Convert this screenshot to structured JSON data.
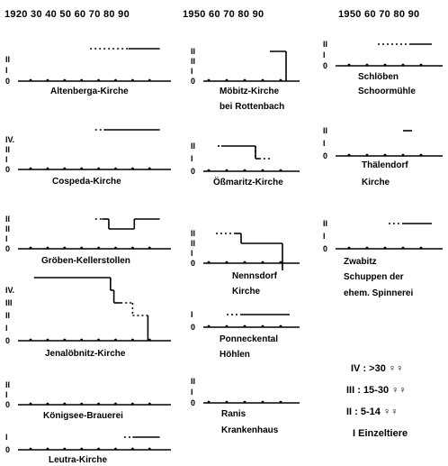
{
  "headers": {
    "col1": "1920 30 40 50 60 70 80 90",
    "col2": "1950 60 70 80 90",
    "col3": "1950 60 70 80 90"
  },
  "panels": [
    {
      "id": "altenberga",
      "label": "Altenberga-Kirche",
      "label2": "",
      "levels": [
        "II",
        "I",
        "0"
      ],
      "top": "II",
      "segments": [
        {
          "from": 1955,
          "to": 1996,
          "level": 3,
          "style": "dotted-then-solid"
        }
      ]
    },
    {
      "id": "cospeda",
      "label": "Cospeda-Kirche",
      "label2": "",
      "levels": [
        "IV.",
        "II",
        "I",
        "0"
      ],
      "top": "IV.",
      "segments": [
        {
          "from": 1958,
          "to": 1963,
          "level": 4,
          "style": "dotted"
        },
        {
          "from": 1963,
          "to": 1996,
          "level": 4,
          "style": "solid"
        }
      ]
    },
    {
      "id": "groeben",
      "label": "Gröben-Kellerstollen",
      "label2": "",
      "levels": [
        "II",
        "II",
        "I",
        "0"
      ],
      "top": "II",
      "segments": [
        {
          "from": 1958,
          "to": 1962,
          "level": 3,
          "style": "dotted"
        },
        {
          "from": 1962,
          "to": 1966,
          "level": 3,
          "style": "solid"
        },
        {
          "from": 1966,
          "to": 1981,
          "level": 2,
          "style": "solid"
        },
        {
          "from": 1981,
          "to": 1996,
          "level": 3,
          "style": "solid"
        }
      ]
    },
    {
      "id": "jenaloebnitz",
      "label": "Jenalöbnitz-Kirche",
      "label2": "",
      "levels": [
        "IV.",
        "III",
        "II",
        "I",
        "0"
      ],
      "top": "IV.",
      "segments": [
        {
          "from": 1922,
          "to": 1967,
          "level": 5,
          "style": "solid"
        },
        {
          "from": 1967,
          "to": 1969,
          "level": 4,
          "style": "solid"
        },
        {
          "from": 1969,
          "to": 1973,
          "level": 3,
          "style": "solid"
        },
        {
          "from": 1973,
          "to": 1980,
          "level": 3,
          "style": "dotted"
        },
        {
          "from": 1980,
          "to": 1989,
          "level": 2,
          "style": "dotted"
        },
        {
          "from": 1989,
          "to": 1989,
          "level": 0,
          "style": "drop"
        }
      ]
    },
    {
      "id": "koenigsee",
      "label": "Königsee-Brauerei",
      "label2": "",
      "levels": [
        "II",
        "I",
        "0"
      ],
      "top": "II",
      "segments": []
    },
    {
      "id": "leutra",
      "label": "Leutra-Kirche",
      "label2": "",
      "levels": [
        "I",
        "0"
      ],
      "top": "I",
      "segments": [
        {
          "from": 1975,
          "to": 1980,
          "level": 1,
          "style": "dotted"
        },
        {
          "from": 1980,
          "to": 1996,
          "level": 1,
          "style": "solid"
        }
      ]
    },
    {
      "id": "moebitz",
      "label": "Möbitz-Kirche",
      "label2": "bei Rottenbach",
      "levels": [
        "II",
        "II",
        "I",
        "0"
      ],
      "top": "II",
      "segments": [
        {
          "from": 1984,
          "to": 1993,
          "level": 3,
          "style": "solid"
        }
      ]
    },
    {
      "id": "oessmaritz",
      "label": "Ößmaritz-Kirche",
      "label2": "",
      "levels": [
        "II",
        "I",
        "0"
      ],
      "top": "II",
      "segments": [
        {
          "from": 1955,
          "to": 1957,
          "level": 2,
          "style": "dotted"
        },
        {
          "from": 1957,
          "to": 1976,
          "level": 2,
          "style": "solid"
        },
        {
          "from": 1976,
          "to": 1978,
          "level": 1,
          "style": "solid"
        },
        {
          "from": 1978,
          "to": 1985,
          "level": 1,
          "style": "dotted"
        }
      ]
    },
    {
      "id": "nennsdorf",
      "label": "Nennsdorf",
      "label2": "Kirche",
      "levels": [
        "II",
        "II",
        "I",
        "0"
      ],
      "top": "II",
      "segments": [
        {
          "from": 1954,
          "to": 1965,
          "level": 3,
          "style": "dotted"
        },
        {
          "from": 1965,
          "to": 1968,
          "level": 3,
          "style": "solid"
        },
        {
          "from": 1968,
          "to": 1991,
          "level": 2,
          "style": "solid"
        }
      ]
    },
    {
      "id": "ponneckental",
      "label": "Ponneckental",
      "label2": "Höhlen",
      "levels": [
        "I",
        "0"
      ],
      "top": "I",
      "segments": [
        {
          "from": 1960,
          "to": 1968,
          "level": 1,
          "style": "dotted"
        },
        {
          "from": 1968,
          "to": 1995,
          "level": 1,
          "style": "solid"
        }
      ]
    },
    {
      "id": "ranis",
      "label": "Ranis",
      "label2": "Krankenhaus",
      "levels": [
        "II",
        "I",
        "0"
      ],
      "top": "II",
      "segments": []
    },
    {
      "id": "schloeben",
      "label": "Schlöben",
      "label2": "Schoormühle",
      "levels": [
        "II",
        "I",
        "0"
      ],
      "top": "II",
      "segments": [
        {
          "from": 1966,
          "to": 1984,
          "level": 2,
          "style": "dotted"
        },
        {
          "from": 1984,
          "to": 1996,
          "level": 2,
          "style": "solid"
        }
      ]
    },
    {
      "id": "thaelendorf",
      "label": "Thälendorf",
      "label2": "Kirche",
      "levels": [
        "II",
        "I",
        "0"
      ],
      "top": "II",
      "segments": [
        {
          "from": 1980,
          "to": 1985,
          "level": 2,
          "style": "solid"
        }
      ]
    },
    {
      "id": "zwabitz",
      "label": "Zwabitz",
      "label2": "Schuppen der",
      "label3": "ehem. Spinnerei",
      "levels": [
        "II",
        "I",
        "0"
      ],
      "top": "II",
      "segments": [
        {
          "from": 1972,
          "to": 1980,
          "level": 2,
          "style": "dotted"
        },
        {
          "from": 1980,
          "to": 1996,
          "level": 2,
          "style": "solid"
        }
      ]
    }
  ],
  "legend": [
    {
      "code": "IV",
      "text": "IV : >30"
    },
    {
      "code": "III",
      "text": "III : 15-30"
    },
    {
      "code": "II",
      "text": "II : 5-14"
    },
    {
      "code": "I",
      "text": "I  Einzeltiere"
    }
  ]
}
